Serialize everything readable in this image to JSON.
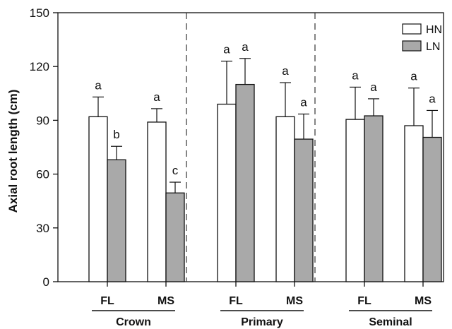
{
  "chart_data": {
    "type": "bar",
    "ylabel": "Axial root length (cm)",
    "ylim": [
      0,
      150
    ],
    "yticks": [
      0,
      30,
      60,
      90,
      120,
      150
    ],
    "legend": {
      "placement": "top-right",
      "entries": [
        "HN",
        "LN"
      ]
    },
    "grid": false,
    "colors": {
      "HN": "#ffffff",
      "LN": "#a9a9a9"
    },
    "groups": [
      {
        "label": "Crown",
        "categories": [
          {
            "label": "FL",
            "HN": {
              "value": 92,
              "err": 11,
              "letter": "a"
            },
            "LN": {
              "value": 68,
              "err": 7.5,
              "letter": "b"
            }
          },
          {
            "label": "MS",
            "HN": {
              "value": 89,
              "err": 7.5,
              "letter": "a"
            },
            "LN": {
              "value": 49.5,
              "err": 6,
              "letter": "c"
            }
          }
        ]
      },
      {
        "label": "Primary",
        "categories": [
          {
            "label": "FL",
            "HN": {
              "value": 99,
              "err": 24,
              "letter": "a"
            },
            "LN": {
              "value": 110,
              "err": 14.5,
              "letter": "a"
            }
          },
          {
            "label": "MS",
            "HN": {
              "value": 92,
              "err": 19,
              "letter": "a"
            },
            "LN": {
              "value": 79.5,
              "err": 14,
              "letter": "a"
            }
          }
        ]
      },
      {
        "label": "Seminal",
        "categories": [
          {
            "label": "FL",
            "HN": {
              "value": 90.5,
              "err": 18,
              "letter": "a"
            },
            "LN": {
              "value": 92.5,
              "err": 9.5,
              "letter": "a"
            }
          },
          {
            "label": "MS",
            "HN": {
              "value": 87,
              "err": 21,
              "letter": "a"
            },
            "LN": {
              "value": 80.5,
              "err": 15,
              "letter": "a"
            }
          }
        ]
      }
    ]
  }
}
